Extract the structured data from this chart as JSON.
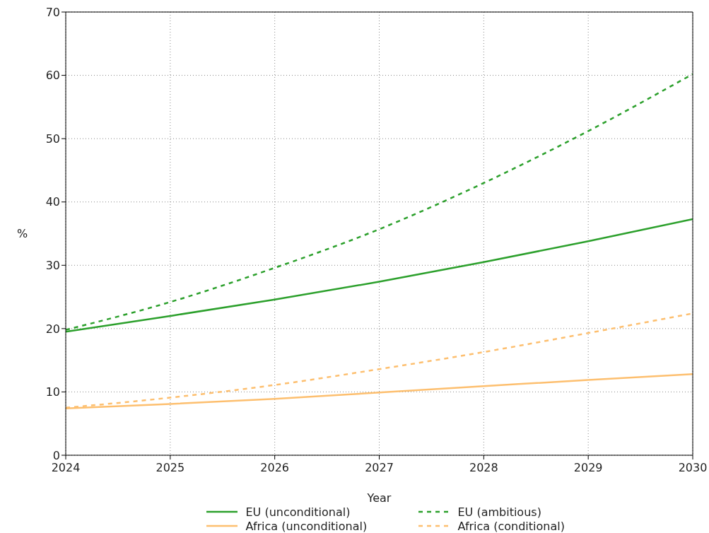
{
  "chart_data": {
    "type": "line",
    "xlabel": "Year",
    "ylabel": "%",
    "x": [
      2024,
      2025,
      2026,
      2027,
      2028,
      2029,
      2030
    ],
    "series": [
      {
        "name": "EU (unconditional)",
        "color": "#2ca02c",
        "line_style": "solid",
        "values": [
          19.5,
          22.0,
          24.6,
          27.4,
          30.5,
          33.8,
          37.3
        ]
      },
      {
        "name": "EU (ambitious)",
        "color": "#2ca02c",
        "line_style": "dashed",
        "values": [
          19.8,
          24.2,
          29.6,
          35.7,
          43.0,
          51.2,
          60.2
        ]
      },
      {
        "name": "Africa (unconditional)",
        "color": "#fdbf6f",
        "line_style": "solid",
        "values": [
          7.4,
          8.1,
          8.9,
          9.9,
          10.9,
          11.9,
          12.8
        ]
      },
      {
        "name": "Africa (conditional)",
        "color": "#fdbf6f",
        "line_style": "dashed",
        "values": [
          7.5,
          9.1,
          11.1,
          13.6,
          16.3,
          19.3,
          22.4
        ]
      }
    ],
    "xlim": [
      2024,
      2030
    ],
    "xticks": [
      2024,
      2025,
      2026,
      2027,
      2028,
      2029,
      2030
    ],
    "ylim": [
      0,
      70
    ],
    "yticks": [
      0,
      10,
      20,
      30,
      40,
      50,
      60,
      70
    ],
    "grid": true,
    "legend": "bottom",
    "marker": "none"
  }
}
